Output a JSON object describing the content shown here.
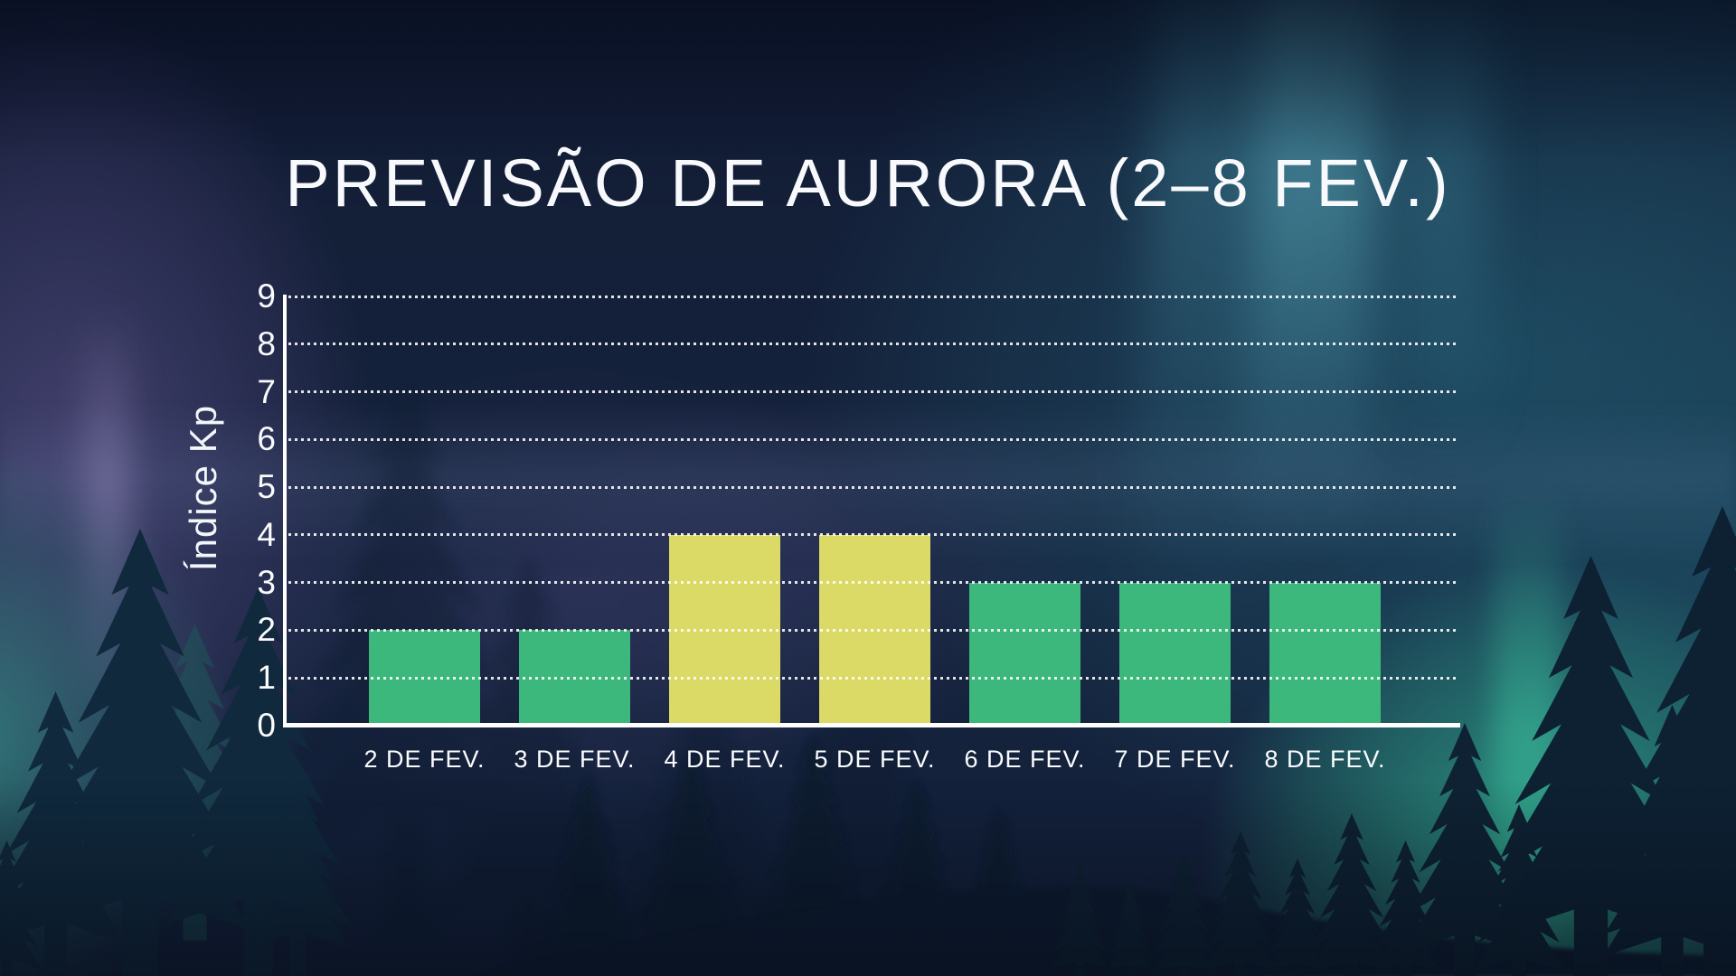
{
  "chart_data": {
    "type": "bar",
    "title": "PREVISÃO DE AURORA (2–8 FEV.)",
    "xlabel": "",
    "ylabel": "Índice Kp",
    "categories": [
      "2 DE FEV.",
      "3 DE FEV.",
      "4 DE FEV.",
      "5 DE FEV.",
      "6 DE FEV.",
      "7 DE FEV.",
      "8 DE FEV."
    ],
    "values": [
      2,
      2,
      4,
      4,
      3,
      3,
      3
    ],
    "bar_colors": [
      "#3CB87C",
      "#3CB87C",
      "#DBDA67",
      "#DBDA67",
      "#3CB87C",
      "#3CB87C",
      "#3CB87C"
    ],
    "ylim": [
      0,
      9
    ],
    "yticks": [
      0,
      1,
      2,
      3,
      4,
      5,
      6,
      7,
      8,
      9
    ],
    "grid": "horizontal-dotted-white",
    "legend": "none",
    "colors": {
      "bar_green": "#3CB87C",
      "bar_yellow": "#DBDA67",
      "axis": "#FFFFFF",
      "text": "#FAFBFD",
      "background_navy": "#141F38",
      "aurora_teal": "#36C49C",
      "aurora_purple": "#9478C6",
      "tree_silhouette": "#0E2233"
    }
  }
}
